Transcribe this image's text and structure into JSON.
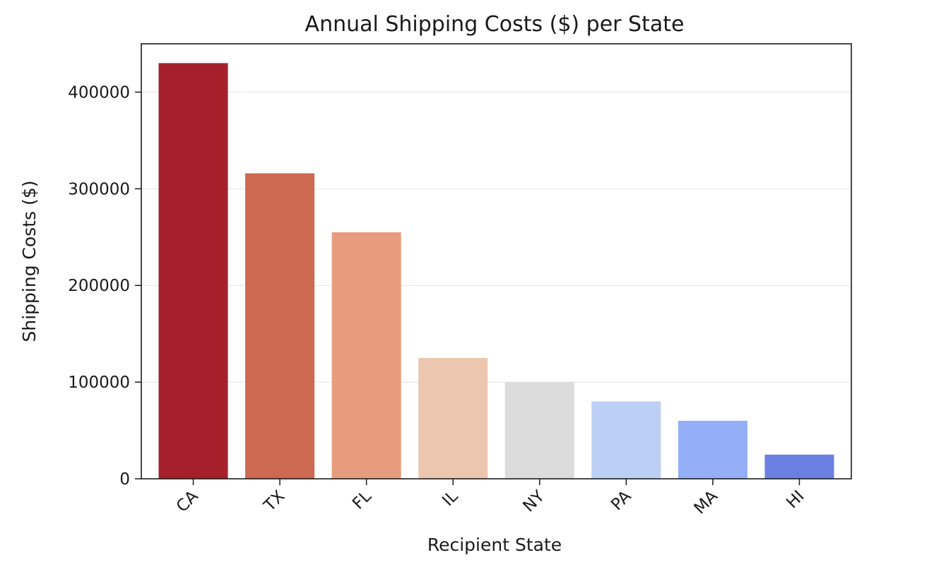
{
  "chart_data": {
    "type": "bar",
    "title": "Annual Shipping Costs ($) per State",
    "xlabel": "Recipient State",
    "ylabel": "Shipping Costs ($)",
    "categories": [
      "CA",
      "TX",
      "FL",
      "IL",
      "NY",
      "PA",
      "MA",
      "HI"
    ],
    "values": [
      430000,
      316000,
      255000,
      125000,
      100000,
      80000,
      60000,
      25000
    ],
    "colors": [
      "#a6202c",
      "#cd6951",
      "#e89c7e",
      "#ecc6ae",
      "#dcdcdc",
      "#bccff5",
      "#94aff7",
      "#6a80e2"
    ],
    "ylim": [
      0,
      450000
    ],
    "yticks": [
      0,
      100000,
      200000,
      300000,
      400000
    ],
    "ytick_labels": [
      "0",
      "100000",
      "200000",
      "300000",
      "400000"
    ],
    "grid": "y",
    "legend": "none"
  }
}
